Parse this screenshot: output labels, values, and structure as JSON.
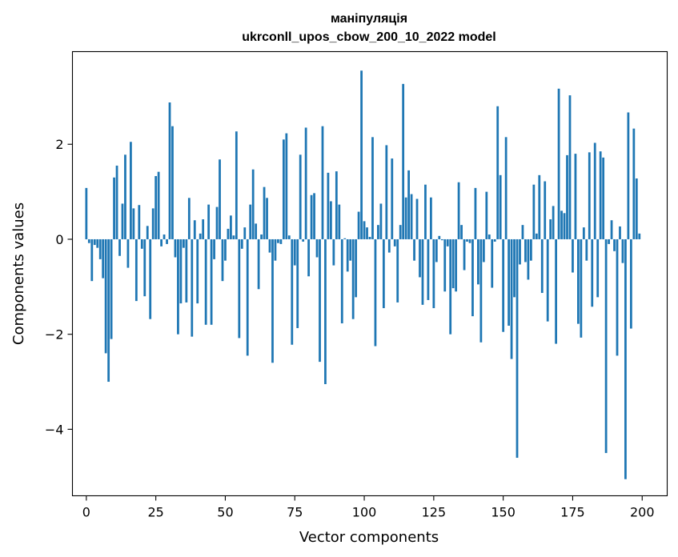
{
  "chart_data": {
    "type": "bar",
    "title": "маніпуляція",
    "subtitle": "ukrconll_upos_cbow_200_10_2022 model",
    "xlabel": "Vector components",
    "ylabel": "Components values",
    "xlim": [
      -5,
      209
    ],
    "ylim": [
      -5.4,
      3.95
    ],
    "xticks": [
      0,
      25,
      50,
      75,
      100,
      125,
      150,
      175,
      200
    ],
    "yticks": [
      -4,
      -2,
      0,
      2
    ],
    "ytick_labels": [
      "−4",
      "−2",
      "0",
      "2"
    ],
    "bar_color": "#1f77b4",
    "grid": false,
    "x": [
      0,
      1,
      2,
      3,
      4,
      5,
      6,
      7,
      8,
      9,
      10,
      11,
      12,
      13,
      14,
      15,
      16,
      17,
      18,
      19,
      20,
      21,
      22,
      23,
      24,
      25,
      26,
      27,
      28,
      29,
      30,
      31,
      32,
      33,
      34,
      35,
      36,
      37,
      38,
      39,
      40,
      41,
      42,
      43,
      44,
      45,
      46,
      47,
      48,
      49,
      50,
      51,
      52,
      53,
      54,
      55,
      56,
      57,
      58,
      59,
      60,
      61,
      62,
      63,
      64,
      65,
      66,
      67,
      68,
      69,
      70,
      71,
      72,
      73,
      74,
      75,
      76,
      77,
      78,
      79,
      80,
      81,
      82,
      83,
      84,
      85,
      86,
      87,
      88,
      89,
      90,
      91,
      92,
      93,
      94,
      95,
      96,
      97,
      98,
      99,
      100,
      101,
      102,
      103,
      104,
      105,
      106,
      107,
      108,
      109,
      110,
      111,
      112,
      113,
      114,
      115,
      116,
      117,
      118,
      119,
      120,
      121,
      122,
      123,
      124,
      125,
      126,
      127,
      128,
      129,
      130,
      131,
      132,
      133,
      134,
      135,
      136,
      137,
      138,
      139,
      140,
      141,
      142,
      143,
      144,
      145,
      146,
      147,
      148,
      149,
      150,
      151,
      152,
      153,
      154,
      155,
      156,
      157,
      158,
      159,
      160,
      161,
      162,
      163,
      164,
      165,
      166,
      167,
      168,
      169,
      170,
      171,
      172,
      173,
      174,
      175,
      176,
      177,
      178,
      179,
      180,
      181,
      182,
      183,
      184,
      185,
      186,
      187,
      188,
      189,
      190,
      191,
      192,
      193,
      194,
      195,
      196,
      197,
      198,
      199
    ],
    "values": [
      1.08,
      -0.08,
      -0.88,
      -0.12,
      -0.18,
      -0.42,
      -0.82,
      -2.4,
      -3.0,
      -2.1,
      1.3,
      1.55,
      -0.35,
      0.75,
      1.78,
      -0.6,
      2.05,
      0.65,
      -1.3,
      0.72,
      -0.2,
      -1.2,
      0.28,
      -1.68,
      0.65,
      1.33,
      1.42,
      -0.15,
      0.1,
      -0.1,
      2.88,
      2.38,
      -0.38,
      -2.0,
      -1.35,
      -0.18,
      -1.33,
      0.87,
      -2.05,
      0.4,
      -1.35,
      0.12,
      0.42,
      -1.8,
      0.73,
      -1.8,
      -0.42,
      0.68,
      1.68,
      -0.88,
      -0.45,
      0.22,
      0.5,
      0.08,
      2.27,
      -2.08,
      -0.2,
      0.25,
      -2.45,
      0.73,
      1.47,
      0.33,
      -1.05,
      0.1,
      1.1,
      0.87,
      -0.28,
      -2.6,
      -0.45,
      -0.08,
      -0.1,
      2.1,
      2.23,
      0.08,
      -2.22,
      -0.55,
      -1.87,
      1.78,
      -0.05,
      2.35,
      -0.78,
      0.93,
      0.97,
      -0.38,
      -2.58,
      2.38,
      -3.05,
      1.4,
      0.8,
      -0.55,
      1.43,
      0.73,
      -1.77,
      0.02,
      -0.68,
      -0.45,
      -1.68,
      -1.22,
      0.58,
      3.55,
      0.38,
      0.25,
      0.05,
      2.15,
      -2.25,
      0.3,
      0.75,
      -1.45,
      1.98,
      -0.28,
      1.7,
      -0.15,
      -1.33,
      0.3,
      3.27,
      0.88,
      1.45,
      0.95,
      -0.45,
      0.85,
      -0.8,
      -1.38,
      1.15,
      -1.28,
      0.88,
      -1.45,
      -0.48,
      0.07,
      -0.02,
      -1.1,
      -0.15,
      -2.0,
      -1.03,
      -1.1,
      1.2,
      0.3,
      -0.65,
      -0.05,
      -0.08,
      -1.62,
      1.08,
      -0.95,
      -2.17,
      -0.48,
      1.0,
      0.1,
      -1.02,
      -0.05,
      2.8,
      1.35,
      -1.95,
      2.15,
      -1.82,
      -2.52,
      -1.22,
      -4.6,
      -0.53,
      0.3,
      -0.48,
      -0.85,
      -0.45,
      1.15,
      0.12,
      1.35,
      -1.13,
      1.22,
      -1.73,
      0.42,
      0.7,
      -2.2,
      3.17,
      0.6,
      0.55,
      1.77,
      3.03,
      -0.7,
      1.8,
      -1.78,
      -2.07,
      0.25,
      -0.45,
      1.83,
      -1.42,
      2.03,
      -1.22,
      1.85,
      1.72,
      -4.5,
      -0.1,
      0.4,
      -0.25,
      -2.45,
      0.27,
      -0.5,
      -5.05,
      2.67,
      -1.88,
      2.33,
      1.28,
      0.12
    ]
  }
}
